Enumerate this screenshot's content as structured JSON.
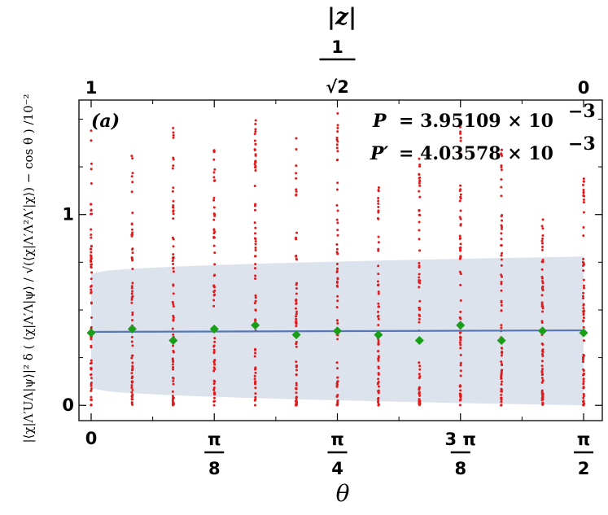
{
  "chart_data": {
    "type": "scatter",
    "panel_label": "(a)",
    "xlabel": "θ",
    "top_axis_label": "|z|",
    "ylabel_text": "|⟨χ|Λ′UΛ|ψ⟩|² δ ( ⟨χ|Λ′Λ|ψ⟩ / √(⟨χ|Λ′Λ²Λ′|χ⟩) − cos θ ) /10⁻²",
    "xlim": [
      0,
      1.5707963
    ],
    "ylim": [
      -0.08,
      1.6
    ],
    "x_ticks": [
      {
        "value": 0,
        "label": "0"
      },
      {
        "value": 0.3926991,
        "num": "π",
        "den": "8"
      },
      {
        "value": 0.7853982,
        "num": "π",
        "den": "4"
      },
      {
        "value": 1.1780972,
        "num": "3 π",
        "den": "8"
      },
      {
        "value": 1.5707963,
        "num": "π",
        "den": "2"
      }
    ],
    "y_ticks": [
      {
        "value": 0,
        "label": "0"
      },
      {
        "value": 1,
        "label": "1"
      }
    ],
    "top_ticks": [
      {
        "value": 0,
        "label": "1"
      },
      {
        "value": 0.7853982,
        "num": "1",
        "den": "√2"
      },
      {
        "value": 1.5707963,
        "label": "0"
      }
    ],
    "annotations": [
      {
        "lhs": "P",
        "rhs": "=  3.95109 × 10",
        "exp": "−3"
      },
      {
        "lhs": "P′",
        "rhs": "= 4.03578 × 10",
        "exp": "−3"
      }
    ],
    "scatter_columns": [
      {
        "x": 0.0,
        "max": 1.45
      },
      {
        "x": 0.1309,
        "max": 1.36
      },
      {
        "x": 0.2618,
        "max": 1.47
      },
      {
        "x": 0.3927,
        "max": 1.42
      },
      {
        "x": 0.5236,
        "max": 1.52
      },
      {
        "x": 0.6545,
        "max": 1.45
      },
      {
        "x": 0.7854,
        "max": 1.54
      },
      {
        "x": 0.9163,
        "max": 1.2
      },
      {
        "x": 1.0472,
        "max": 1.37
      },
      {
        "x": 1.1781,
        "max": 1.46
      },
      {
        "x": 1.309,
        "max": 1.35
      },
      {
        "x": 1.4399,
        "max": 1.03
      },
      {
        "x": 1.5708,
        "max": 1.23
      }
    ],
    "green_points": {
      "x": [
        0.0,
        0.1309,
        0.2618,
        0.3927,
        0.5236,
        0.6545,
        0.7854,
        0.9163,
        1.0472,
        1.1781,
        1.309,
        1.4399,
        1.5708
      ],
      "y": [
        0.38,
        0.4,
        0.34,
        0.4,
        0.42,
        0.37,
        0.39,
        0.37,
        0.34,
        0.42,
        0.34,
        0.39,
        0.38
      ]
    },
    "mean_line": {
      "y_start": 0.385,
      "y_end": 0.393
    },
    "band": {
      "lower_start": 0.09,
      "lower_end": 0.0,
      "upper_start": 0.69,
      "upper_end": 0.78
    },
    "colors": {
      "scatter": "#e31a1c",
      "markers": "#1a9e1a",
      "line": "#5677b4",
      "band": "#dde3ec"
    }
  }
}
